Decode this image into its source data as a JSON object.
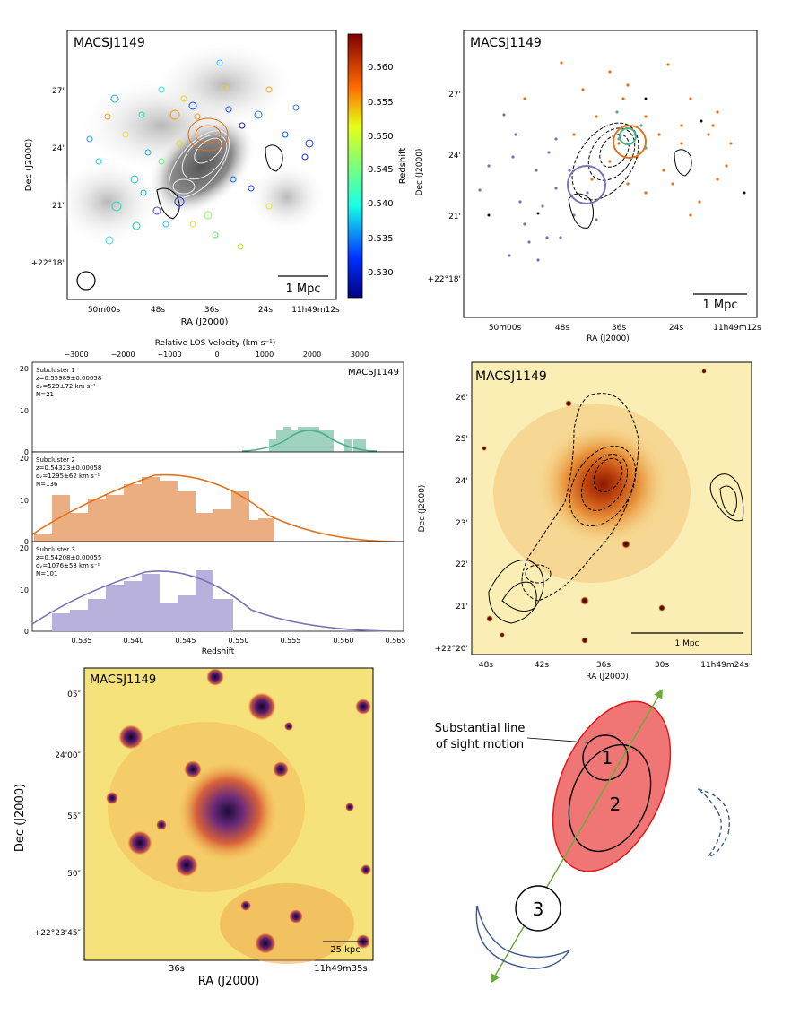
{
  "colors": {
    "sub1": "#4dae8f",
    "sub1_fill": "#9fd3bf",
    "sub2": "#e0731f",
    "sub2_fill": "#ebae80",
    "sub3": "#7c72b5",
    "sub3_fill": "#b7b1dc",
    "ellipse_fill": "#f06b6b",
    "ellipse_stroke": "#e01919",
    "arrow": "#6aab3c",
    "shock": "#3a5a8e"
  },
  "panel_a": {
    "title": "MACSJ1149",
    "colorbar_label": "Redshift",
    "colorbar_ticks": [
      "0.560",
      "0.555",
      "0.550",
      "0.545",
      "0.540",
      "0.535",
      "0.530"
    ],
    "y_label": "Dec (J2000)",
    "y_ticks": [
      "27'",
      "24'",
      "21'",
      "+22°18'"
    ],
    "x_label": "RA (J2000)",
    "x_ticks": [
      "50m00s",
      "48s",
      "36s",
      "24s",
      "11h49m12s"
    ],
    "scalebar": "1 Mpc"
  },
  "panel_b": {
    "title": "MACSJ1149",
    "y_label": "Dec (J2000)",
    "y_ticks": [
      "27'",
      "24'",
      "21'",
      "+22°18'"
    ],
    "x_label": "RA (J2000)",
    "x_ticks": [
      "50m00s",
      "48s",
      "36s",
      "24s",
      "11h49m12s"
    ],
    "scalebar": "1 Mpc"
  },
  "panel_c": {
    "title": "MACSJ1149",
    "top_axis_label": "Relative LOS Velocity (km s⁻¹)",
    "top_ticks": [
      "−3000",
      "−2000",
      "−1000",
      "0",
      "1000",
      "2000",
      "3000"
    ],
    "x_label": "Redshift",
    "x_ticks": [
      "0.535",
      "0.540",
      "0.545",
      "0.550",
      "0.555",
      "0.560",
      "0.565"
    ],
    "subclusters": [
      {
        "name": "Subcluster 1",
        "z": "z=0.55989±0.00058",
        "sigma": "σᵥ=529±72 km s⁻¹",
        "n": "N=21",
        "y_ticks": [
          "20",
          "10",
          "0"
        ]
      },
      {
        "name": "Subcluster 2",
        "z": "z=0.54323±0.00058",
        "sigma": "σᵥ=1295±62 km s⁻¹",
        "n": "N=136",
        "y_ticks": [
          "20",
          "10",
          "0"
        ]
      },
      {
        "name": "Subcluster 3",
        "z": "z=0.54208±0.00055",
        "sigma": "σᵥ=1076±53 km s⁻¹",
        "n": "N=101",
        "y_ticks": [
          "20",
          "10",
          "0"
        ]
      }
    ]
  },
  "panel_d": {
    "title": "MACSJ1149",
    "y_label": "Dec (J2000)",
    "y_ticks": [
      "26'",
      "25'",
      "24'",
      "23'",
      "22'",
      "21'",
      "+22°20'"
    ],
    "x_label": "RA (J2000)",
    "x_ticks": [
      "48s",
      "42s",
      "36s",
      "30s",
      "11h49m24s"
    ],
    "scalebar": "1 Mpc"
  },
  "panel_e": {
    "title": "MACSJ1149",
    "y_label": "Dec (J2000)",
    "y_ticks": [
      "05″",
      "24'00″",
      "55″",
      "50″",
      "+22°23'45″"
    ],
    "x_label": "RA (J2000)",
    "x_ticks": [
      "36s",
      "11h49m35s"
    ],
    "scalebar": "25 kpc"
  },
  "panel_f": {
    "annotation_line1": "Substantial line",
    "annotation_line2": "of sight motion",
    "labels": [
      "1",
      "2",
      "3"
    ]
  }
}
